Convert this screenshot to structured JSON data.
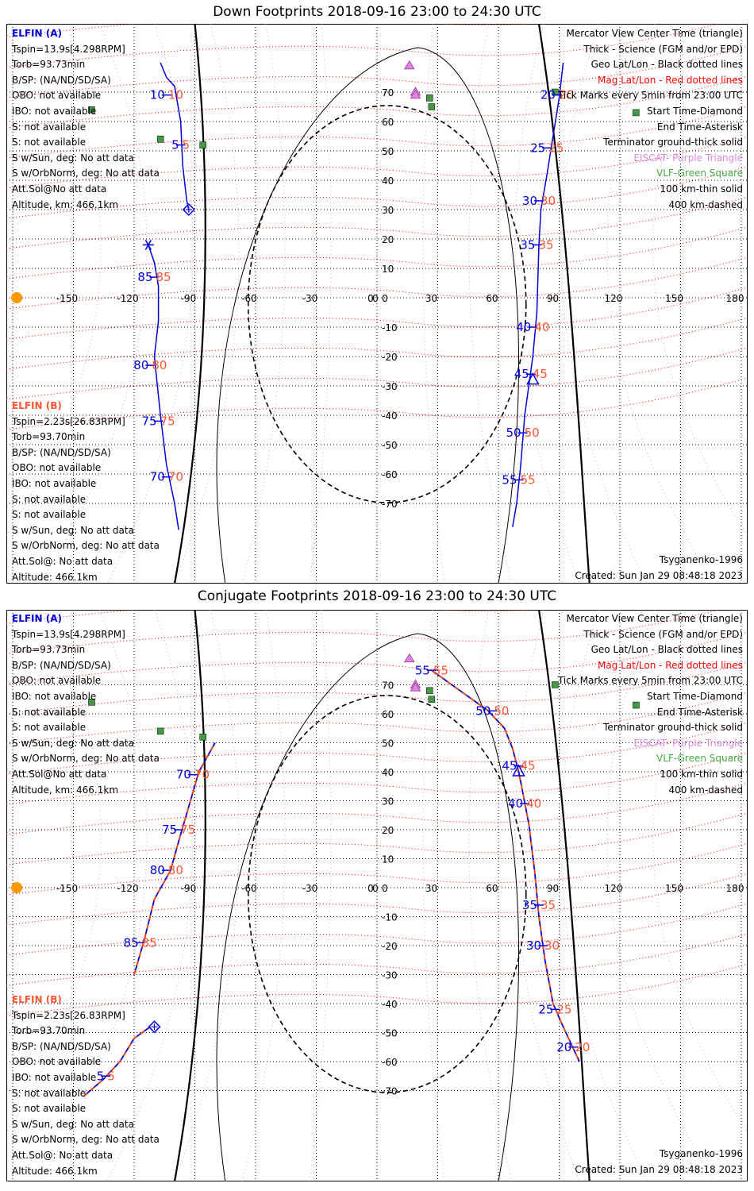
{
  "panels": [
    {
      "title": "Down Footprints 2018-09-16 23:00 to 24:30 UTC",
      "elfin_a": {
        "name": "ELFIN (A)",
        "lines": [
          "Tspin=13.9s[4.298RPM]",
          "Torb=93.73min",
          "B/SP: (NA/ND/SD/SA)",
          "OBO: not available",
          "IBO: not available",
          "S: not available",
          "S: not available",
          "S w/Sun, deg: No att data",
          "S w/OrbNorm, deg: No att data",
          "Att.Sol@No att data",
          "Altitude, km: 466.1km"
        ]
      },
      "elfin_b": {
        "name": "ELFIN (B)",
        "lines": [
          "Tspin=2.23s[26.83RPM]",
          "Torb=93.70min",
          "B/SP: (NA/ND/SD/SA)",
          "OBO: not available",
          "IBO: not available",
          "S: not available",
          "S: not available",
          "S w/Sun, deg: No att data",
          "S w/OrbNorm, deg: No att data",
          "Att.Sol@: No att data",
          "Altitude: 466.1km"
        ]
      },
      "model": "Tsyganenko-1996",
      "created": "Created: Sun Jan 29 08:48:18 2023"
    },
    {
      "title": "Conjugate Footprints 2018-09-16 23:00 to 24:30 UTC",
      "elfin_a": {
        "name": "ELFIN (A)",
        "lines": [
          "Tspin=13.9s[4.298RPM]",
          "Torb=93.73min",
          "B/SP: (NA/ND/SD/SA)",
          "OBO: not available",
          "IBO: not available",
          "S: not available",
          "S: not available",
          "S w/Sun, deg: No att data",
          "S w/OrbNorm, deg: No att data",
          "Att.Sol@No att data",
          "Altitude, km: 466.1km"
        ]
      },
      "elfin_b": {
        "name": "ELFIN (B)",
        "lines": [
          "Tspin=2.23s[26.83RPM]",
          "Torb=93.70min",
          "B/SP: (NA/ND/SD/SA)",
          "OBO: not available",
          "IBO: not available",
          "S: not available",
          "S: not available",
          "S w/Sun, deg: No att data",
          "S w/OrbNorm, deg: No att data",
          "Att.Sol@: No att data",
          "Altitude: 466.1km"
        ]
      },
      "model": "Tsyganenko-1996",
      "created": "Created: Sun Jan 29 08:48:18 2023"
    }
  ],
  "legend": [
    {
      "text": "Mercator View Center Time (triangle)",
      "color": "#000000"
    },
    {
      "text": "Thick - Science (FGM and/or EPD)",
      "color": "#000000"
    },
    {
      "text": "Geo Lat/Lon - Black dotted lines",
      "color": "#000000"
    },
    {
      "text": "Mag Lat/Lon - Red dotted lines",
      "color": "#ff0000"
    },
    {
      "text": "Tick Marks every 5min from 23:00 UTC",
      "color": "#000000"
    },
    {
      "text": "Start Time-Diamond",
      "color": "#000000"
    },
    {
      "text": "End Time-Asterisk",
      "color": "#000000"
    },
    {
      "text": "Terminator ground-thick solid",
      "color": "#000000"
    },
    {
      "text": "EISCAT- Purple Triangle",
      "color": "#dd88dd"
    },
    {
      "text": "VLF-Green Square",
      "color": "#44aa44"
    },
    {
      "text": "100 km-thin solid",
      "color": "#000000"
    },
    {
      "text": "400 km-dashed",
      "color": "#000000"
    }
  ],
  "colors": {
    "elfin_a": "#0000dd",
    "elfin_b": "#ff5533",
    "mag_grid": "#ff0000",
    "eiscat": "#dd77dd",
    "vlf": "#449944",
    "sun": "#ff9900"
  },
  "chart_data": [
    {
      "type": "scatter",
      "title": "Down Footprints 2018-09-16 23:00 to 24:30 UTC",
      "xlim": [
        -180,
        180
      ],
      "ylim": [
        -80,
        80
      ],
      "x_ticks": [
        -150,
        -120,
        -90,
        -60,
        -30,
        0,
        30,
        60,
        90,
        120,
        150,
        180
      ],
      "y_ticks": [
        -70,
        -60,
        -50,
        -40,
        -30,
        -20,
        -10,
        0,
        10,
        20,
        30,
        40,
        50,
        60,
        70
      ],
      "grid": true,
      "series": [
        {
          "name": "ELFIN (A)",
          "points": [
            [
              -107,
              80
            ],
            [
              -104,
              75
            ],
            [
              -100,
              72
            ],
            [
              -97,
              60
            ],
            [
              -96,
              45
            ],
            [
              -94,
              33
            ],
            [
              -93,
              30
            ]
          ],
          "tick_labels": [
            {
              "text": "10",
              "lon": -104,
              "lat": 69
            },
            {
              "text": "5",
              "lon": -97,
              "lat": 52
            }
          ],
          "start": [
            -93,
            30
          ]
        },
        {
          "name": "ELFIN (A)",
          "points": [
            [
              -113,
              18
            ],
            [
              -110,
              12
            ],
            [
              -108,
              4
            ],
            [
              -108,
              -8
            ],
            [
              -110,
              -20
            ],
            [
              -107,
              -40
            ],
            [
              -104,
              -57
            ],
            [
              -100,
              -70
            ],
            [
              -98,
              -79
            ]
          ],
          "tick_labels": [
            {
              "text": "85",
              "lon": -110,
              "lat": 7
            },
            {
              "text": "80",
              "lon": -112,
              "lat": -23
            },
            {
              "text": "75",
              "lon": -108,
              "lat": -42
            },
            {
              "text": "70",
              "lon": -104,
              "lat": -61
            }
          ],
          "end": [
            -113,
            18
          ]
        },
        {
          "name": "ELFIN (A)",
          "points": [
            [
              92,
              80
            ],
            [
              90,
              68
            ],
            [
              87,
              55
            ],
            [
              84,
              42
            ],
            [
              81,
              30
            ],
            [
              80,
              18
            ],
            [
              79,
              -5
            ],
            [
              77,
              -20
            ],
            [
              75,
              -30
            ],
            [
              73,
              -40
            ],
            [
              71,
              -57
            ],
            [
              69,
              -70
            ],
            [
              67,
              -78
            ]
          ],
          "tick_labels": [
            {
              "text": "20",
              "lon": 89,
              "lat": 69
            },
            {
              "text": "25",
              "lon": 84,
              "lat": 51
            },
            {
              "text": "30",
              "lon": 80,
              "lat": 33
            },
            {
              "text": "35",
              "lon": 79,
              "lat": 18
            },
            {
              "text": "40",
              "lon": 77,
              "lat": -10
            },
            {
              "text": "45",
              "lon": 76,
              "lat": -26
            },
            {
              "text": "50",
              "lon": 72,
              "lat": -46
            },
            {
              "text": "55",
              "lon": 70,
              "lat": -62
            }
          ],
          "center": [
            77,
            -28
          ]
        }
      ],
      "sun": [
        -178,
        0
      ],
      "eiscat": [
        [
          16,
          79
        ],
        [
          19,
          70
        ],
        [
          19,
          69
        ]
      ],
      "vlf": [
        [
          -141,
          64
        ],
        [
          -107,
          54
        ],
        [
          -86,
          52
        ],
        [
          26,
          68
        ],
        [
          27,
          65
        ],
        [
          88,
          70
        ],
        [
          128,
          63
        ]
      ]
    },
    {
      "type": "scatter",
      "title": "Conjugate Footprints 2018-09-16 23:00 to 24:30 UTC",
      "xlim": [
        -180,
        180
      ],
      "ylim": [
        -80,
        80
      ],
      "x_ticks": [
        -150,
        -120,
        -90,
        -60,
        -30,
        0,
        30,
        60,
        90,
        120,
        150,
        180
      ],
      "y_ticks": [
        -70,
        -60,
        -50,
        -40,
        -30,
        -20,
        -10,
        0,
        10,
        20,
        30,
        40,
        50,
        60,
        70
      ],
      "grid": true,
      "series": [
        {
          "name": "ELFIN (A)",
          "points": [
            [
              27,
              75
            ],
            [
              35,
              71
            ],
            [
              43,
              67
            ],
            [
              55,
              61
            ],
            [
              63,
              55
            ],
            [
              67,
              48
            ],
            [
              70,
              40
            ],
            [
              72,
              33
            ],
            [
              75,
              22
            ],
            [
              78,
              5
            ],
            [
              80,
              -10
            ],
            [
              83,
              -25
            ],
            [
              87,
              -40
            ],
            [
              92,
              -48
            ],
            [
              100,
              -60
            ]
          ],
          "tick_labels": [
            {
              "text": "55",
              "lon": 27,
              "lat": 75
            },
            {
              "text": "50",
              "lon": 57,
              "lat": 61
            },
            {
              "text": "45",
              "lon": 70,
              "lat": 42
            },
            {
              "text": "40",
              "lon": 73,
              "lat": 29
            },
            {
              "text": "35",
              "lon": 80,
              "lat": -6
            },
            {
              "text": "30",
              "lon": 82,
              "lat": -20
            },
            {
              "text": "25",
              "lon": 88,
              "lat": -42
            },
            {
              "text": "20",
              "lon": 97,
              "lat": -55
            }
          ],
          "center": [
            70,
            40
          ]
        },
        {
          "name": "ELFIN (A)",
          "points": [
            [
              -120,
              -30
            ],
            [
              -115,
              -18
            ],
            [
              -110,
              -4
            ],
            [
              -102,
              6
            ],
            [
              -98,
              16
            ],
            [
              -93,
              28
            ],
            [
              -88,
              40
            ],
            [
              -80,
              50
            ]
          ],
          "tick_labels": [
            {
              "text": "85",
              "lon": -117,
              "lat": -19
            },
            {
              "text": "80",
              "lon": -104,
              "lat": 6
            },
            {
              "text": "75",
              "lon": -98,
              "lat": 20
            },
            {
              "text": "70",
              "lon": -91,
              "lat": 39
            }
          ]
        },
        {
          "name": "ELFIN (B)",
          "points": [
            [
              -145,
              -72
            ],
            [
              -135,
              -66
            ],
            [
              -127,
              -60
            ],
            [
              -120,
              -52
            ],
            [
              -112,
              -48
            ]
          ],
          "tick_labels": [
            {
              "text": "5",
              "lon": -134,
              "lat": -65
            }
          ],
          "start": [
            -110,
            -48
          ]
        }
      ],
      "sun": [
        -178,
        0
      ],
      "eiscat": [
        [
          16,
          79
        ],
        [
          19,
          70
        ],
        [
          19,
          69
        ]
      ],
      "vlf": [
        [
          -141,
          64
        ],
        [
          -107,
          54
        ],
        [
          -86,
          52
        ],
        [
          26,
          68
        ],
        [
          27,
          65
        ],
        [
          88,
          70
        ],
        [
          128,
          63
        ]
      ]
    }
  ]
}
